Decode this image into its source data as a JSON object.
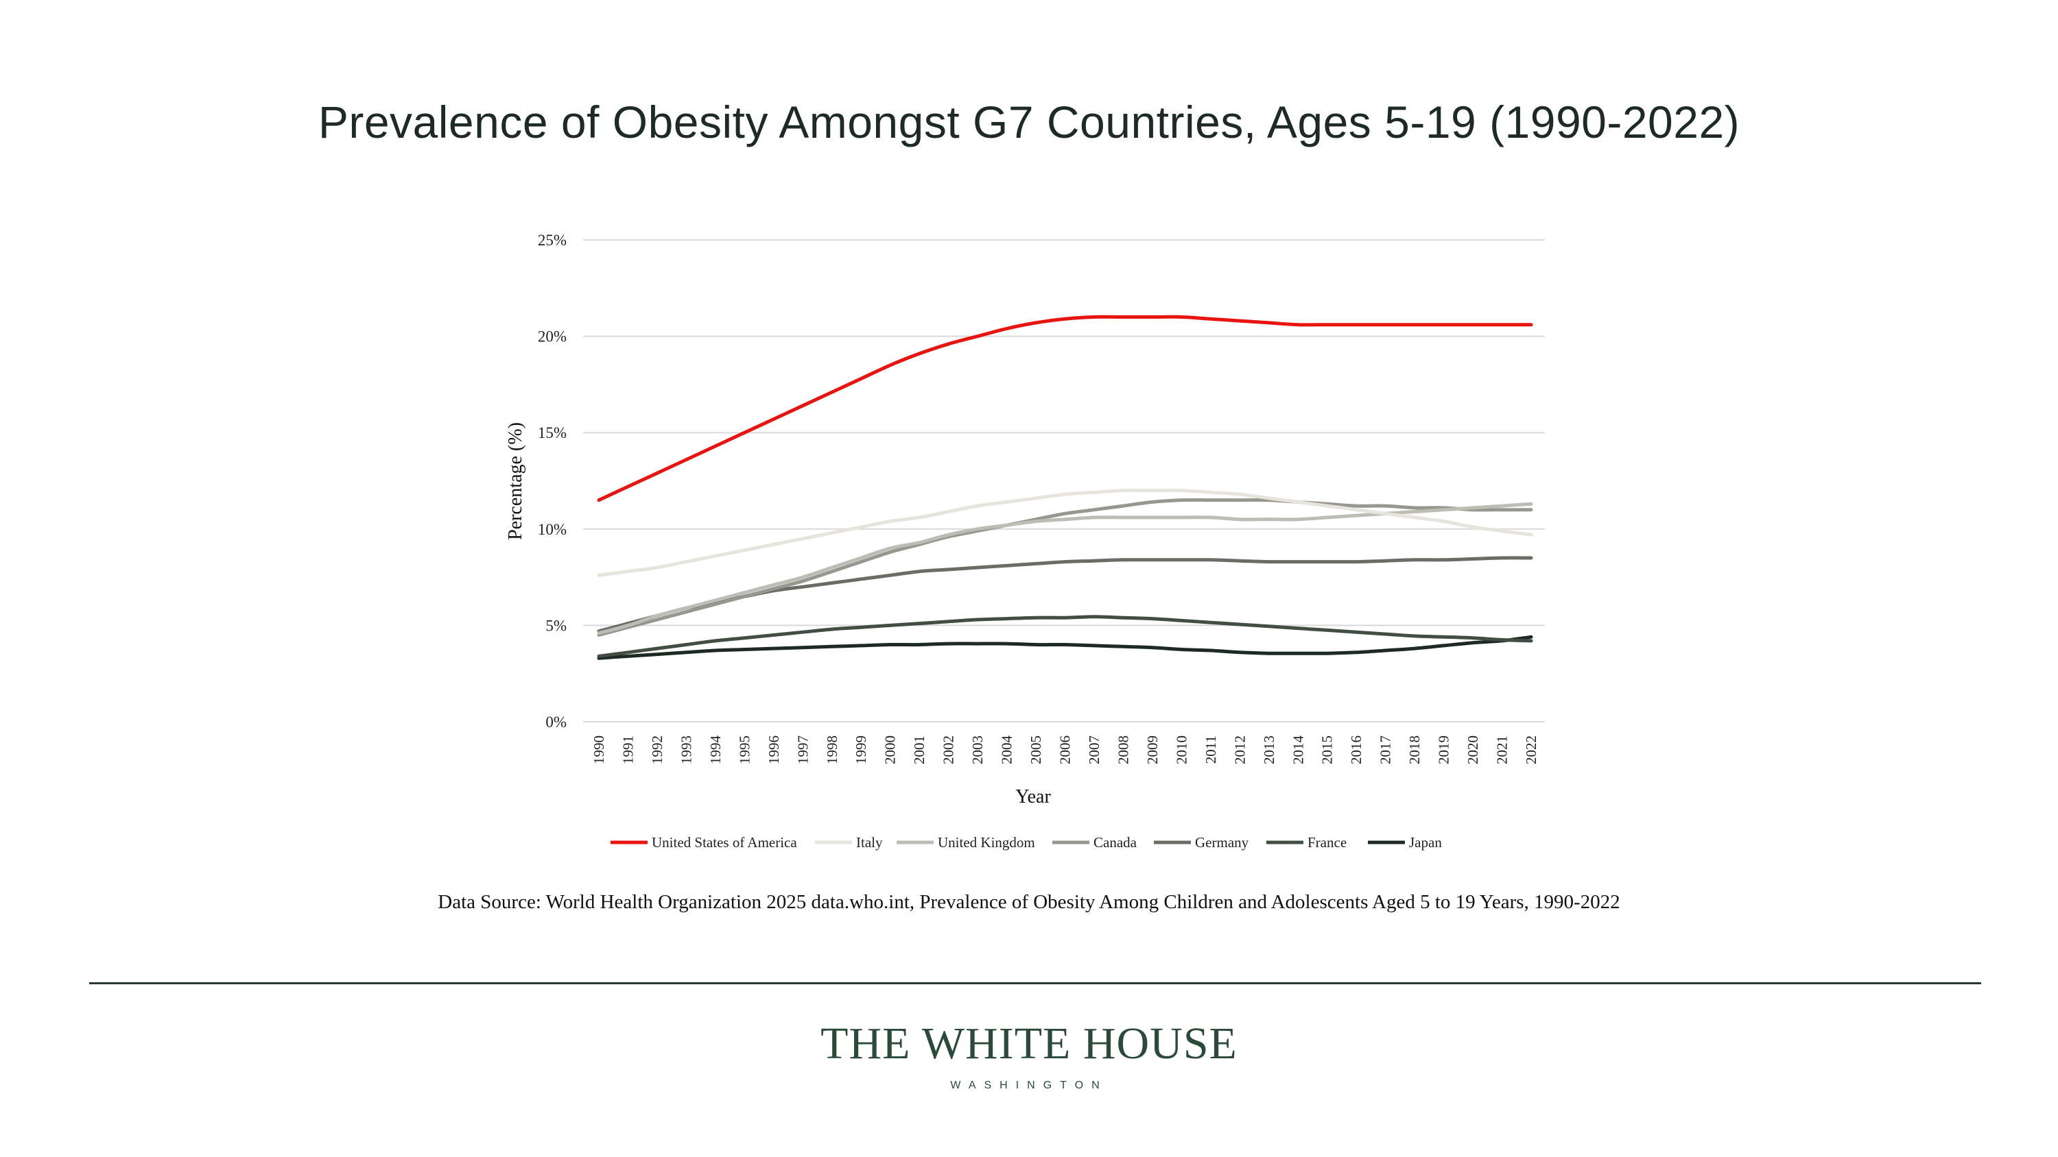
{
  "title": "Prevalence of Obesity Amongst G7 Countries, Ages 5-19 (1990-2022)",
  "source": "Data Source: World Health Organization 2025 data.who.int, Prevalence of Obesity Among Children and Adolescents Aged 5 to 19 Years, 1990-2022",
  "logo": {
    "main": "THE WHITE HOUSE",
    "sub": "WASHINGTON"
  },
  "chart_data": {
    "type": "line",
    "title": "Prevalence of Obesity Amongst G7 Countries, Ages 5-19 (1990-2022)",
    "xlabel": "Year",
    "ylabel": "Percentage (%)",
    "ylim": [
      0,
      25
    ],
    "yticks": [
      0,
      5,
      10,
      15,
      20,
      25
    ],
    "ytick_labels": [
      "0%",
      "5%",
      "10%",
      "15%",
      "20%",
      "25%"
    ],
    "grid": true,
    "legend_position": "bottom",
    "categories": [
      "1990",
      "1991",
      "1992",
      "1993",
      "1994",
      "1995",
      "1996",
      "1997",
      "1998",
      "1999",
      "2000",
      "2001",
      "2002",
      "2003",
      "2004",
      "2005",
      "2006",
      "2007",
      "2008",
      "2009",
      "2010",
      "2011",
      "2012",
      "2013",
      "2014",
      "2015",
      "2016",
      "2017",
      "2018",
      "2019",
      "2020",
      "2021",
      "2022"
    ],
    "series": [
      {
        "name": "United States of America",
        "color": "#e8140f",
        "values": [
          11.5,
          12.2,
          12.9,
          13.6,
          14.3,
          15.0,
          15.7,
          16.4,
          17.1,
          17.8,
          18.5,
          19.1,
          19.6,
          20.0,
          20.4,
          20.7,
          20.9,
          21.0,
          21.0,
          21.0,
          21.0,
          20.9,
          20.8,
          20.7,
          20.6,
          20.6,
          20.6,
          20.6,
          20.6,
          20.6,
          20.6,
          20.6,
          20.6
        ]
      },
      {
        "name": "Italy",
        "color": "#e6e4dd",
        "values": [
          7.6,
          7.8,
          8.0,
          8.3,
          8.6,
          8.9,
          9.2,
          9.5,
          9.8,
          10.1,
          10.4,
          10.6,
          10.9,
          11.2,
          11.4,
          11.6,
          11.8,
          11.9,
          12.0,
          12.0,
          12.0,
          11.9,
          11.8,
          11.6,
          11.4,
          11.2,
          11.0,
          10.8,
          10.6,
          10.4,
          10.1,
          9.9,
          9.7
        ]
      },
      {
        "name": "United Kingdom",
        "color": "#bdbcb5",
        "values": [
          4.6,
          5.0,
          5.5,
          5.9,
          6.3,
          6.7,
          7.1,
          7.5,
          8.0,
          8.5,
          9.0,
          9.3,
          9.7,
          10.0,
          10.2,
          10.4,
          10.5,
          10.6,
          10.6,
          10.6,
          10.6,
          10.6,
          10.5,
          10.5,
          10.5,
          10.6,
          10.7,
          10.8,
          10.9,
          11.0,
          11.1,
          11.2,
          11.3
        ]
      },
      {
        "name": "Canada",
        "color": "#97968f",
        "values": [
          4.5,
          4.9,
          5.3,
          5.7,
          6.1,
          6.5,
          6.9,
          7.3,
          7.8,
          8.3,
          8.8,
          9.2,
          9.6,
          9.9,
          10.2,
          10.5,
          10.8,
          11.0,
          11.2,
          11.4,
          11.5,
          11.5,
          11.5,
          11.5,
          11.4,
          11.3,
          11.2,
          11.2,
          11.1,
          11.1,
          11.0,
          11.0,
          11.0
        ]
      },
      {
        "name": "Germany",
        "color": "#6a6c66",
        "values": [
          4.7,
          5.1,
          5.5,
          5.9,
          6.2,
          6.5,
          6.8,
          7.0,
          7.2,
          7.4,
          7.6,
          7.8,
          7.9,
          8.0,
          8.1,
          8.2,
          8.3,
          8.35,
          8.4,
          8.4,
          8.4,
          8.4,
          8.35,
          8.3,
          8.3,
          8.3,
          8.3,
          8.35,
          8.4,
          8.4,
          8.45,
          8.5,
          8.5
        ]
      },
      {
        "name": "France",
        "color": "#424d44",
        "values": [
          3.4,
          3.6,
          3.8,
          4.0,
          4.2,
          4.35,
          4.5,
          4.65,
          4.8,
          4.9,
          5.0,
          5.1,
          5.2,
          5.3,
          5.35,
          5.4,
          5.4,
          5.45,
          5.4,
          5.35,
          5.25,
          5.15,
          5.05,
          4.95,
          4.85,
          4.75,
          4.65,
          4.55,
          4.45,
          4.4,
          4.35,
          4.25,
          4.2
        ]
      },
      {
        "name": "Japan",
        "color": "#1d2a23",
        "values": [
          3.3,
          3.4,
          3.5,
          3.6,
          3.7,
          3.75,
          3.8,
          3.85,
          3.9,
          3.95,
          4.0,
          4.0,
          4.05,
          4.05,
          4.05,
          4.0,
          4.0,
          3.95,
          3.9,
          3.85,
          3.75,
          3.7,
          3.6,
          3.55,
          3.55,
          3.55,
          3.6,
          3.7,
          3.8,
          3.95,
          4.1,
          4.2,
          4.4
        ]
      }
    ]
  }
}
